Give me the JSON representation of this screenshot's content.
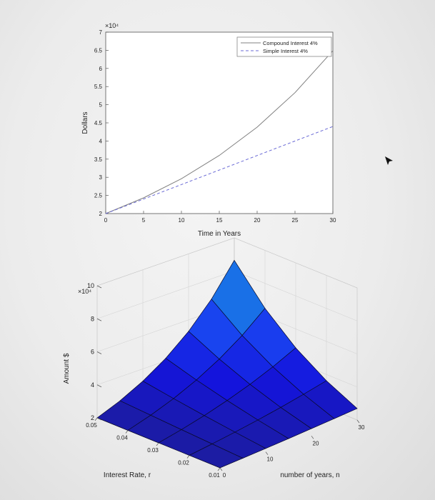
{
  "chart_data": [
    {
      "type": "line",
      "exponent_label": "×10⁴",
      "xlabel": "Time in Years",
      "ylabel": "Dollars",
      "xlim": [
        0,
        30
      ],
      "ylim": [
        2,
        7
      ],
      "x_ticks": [
        "0",
        "5",
        "10",
        "15",
        "20",
        "25",
        "30"
      ],
      "y_ticks": [
        "2",
        "2.5",
        "3",
        "3.5",
        "4",
        "4.5",
        "5",
        "5.5",
        "6",
        "6.5",
        "7"
      ],
      "legend_position": "top-right",
      "series": [
        {
          "name": "Compound Interest 4%",
          "style": "solid",
          "color": "#808080",
          "x": [
            0,
            5,
            10,
            15,
            20,
            25,
            30
          ],
          "y": [
            2.0,
            2.433,
            2.96,
            3.602,
            4.382,
            5.332,
            6.487
          ]
        },
        {
          "name": "Simple Interest 4%",
          "style": "dashed",
          "color": "#6b6bd6",
          "x": [
            0,
            30
          ],
          "y": [
            2.0,
            4.4
          ]
        }
      ]
    },
    {
      "type": "surface",
      "exponent_label": "×10⁴",
      "xlabel": "Interest Rate, r",
      "ylabel": "number of years, n",
      "zlabel": "Amount $",
      "r_ticks": [
        "0.05",
        "0.04",
        "0.03",
        "0.02",
        "0.01"
      ],
      "n_ticks": [
        "0",
        "10",
        "20",
        "30"
      ],
      "z_ticks": [
        "2",
        "4",
        "6",
        "8",
        "10"
      ],
      "r_grid": [
        0.01,
        0.02,
        0.03,
        0.04,
        0.05
      ],
      "n_grid": [
        0,
        5,
        10,
        15,
        20,
        25,
        30
      ],
      "z_lim": [
        2,
        10
      ],
      "principal": 20000
    }
  ]
}
